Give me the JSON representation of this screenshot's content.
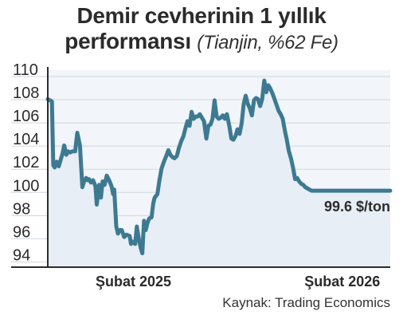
{
  "title_line1": "Demir cevherinin 1 yıllık",
  "title_line2": "performansı",
  "subtitle": "(Tianjin, %62 Fe)",
  "source": "Kaynak: Trading Economics",
  "colors": {
    "line": "#3d7a92",
    "fill": "#e8eef5",
    "plot_bg": "#f2f5f9",
    "grid": "#cfd6de",
    "axis": "#2b2b2b",
    "text": "#2b2b2b"
  },
  "chart_data": {
    "type": "area",
    "title": "Demir cevherinin 1 yıllık performansı",
    "subtitle": "(Tianjin, %62 Fe)",
    "ylim": [
      93,
      110
    ],
    "yticks": [
      94,
      96,
      98,
      100,
      102,
      104,
      106,
      108,
      110
    ],
    "xlim": [
      0,
      100
    ],
    "xticks": [
      {
        "x": 25,
        "label": "Şubat 2025"
      },
      {
        "x": 86,
        "label": "Şubat 2026"
      }
    ],
    "grid": true,
    "last_label": "99.6 $/ton",
    "x": [
      0,
      1.2,
      1.6,
      2,
      2.6,
      3.2,
      3.7,
      4.3,
      4.8,
      5.4,
      5.9,
      6.5,
      7.2,
      8,
      8.6,
      9.4,
      10.1,
      10.6,
      11.2,
      11.6,
      12,
      12.6,
      13.2,
      13.9,
      14.3,
      15,
      15.5,
      16,
      16.6,
      17.2,
      17.9,
      18.6,
      19.1,
      19.4,
      20,
      20.5,
      21,
      21.6,
      22.3,
      23,
      23.9,
      24.3,
      24.7,
      25.5,
      26,
      26.6,
      27.1,
      27.6,
      28.1,
      28.6,
      29.1,
      29.6,
      30.3,
      30.8,
      31.2,
      32,
      32.6,
      33.2,
      33.9,
      34.6,
      35.2,
      35.8,
      36.4,
      37,
      37.7,
      38.3,
      39,
      39.6,
      40.2,
      40.8,
      41.4,
      42,
      42.6,
      43.2,
      43.8,
      44.4,
      45,
      45.6,
      46.3,
      46.9,
      47.5,
      48.1,
      48.7,
      49.3,
      49.9,
      50.5,
      51.1,
      51.7,
      52.3,
      53,
      53.6,
      54.2,
      54.8,
      55.4,
      56,
      56.6,
      57.2,
      57.8,
      58.4,
      59,
      59.6,
      60.2,
      60.8,
      61.4,
      62,
      62.6,
      63.2,
      63.8,
      64.4,
      65,
      65.6,
      66.2,
      66.8,
      67.4,
      68,
      68.6,
      69.2,
      69.8,
      70.4,
      71,
      71.6,
      72.2,
      72.8,
      73.4,
      74,
      74.6,
      75.2,
      75.8,
      76.4,
      77,
      77.6,
      78.2,
      78.8,
      79.4,
      80,
      80.6,
      81.2,
      81.8,
      82.4,
      83,
      83.6,
      84.2,
      84.8,
      85.4,
      86,
      86.6,
      87.2,
      87.8,
      88.4,
      89,
      89.6,
      90.2,
      90.8,
      91.4,
      92,
      92.6,
      93.2,
      93.8,
      94.4,
      95,
      95.6,
      96.2,
      96.8,
      97.4,
      98,
      98.6,
      99.2,
      100
    ],
    "values": [
      107.5,
      107.3,
      101.8,
      101.6,
      102.1,
      101.7,
      102.2,
      102.8,
      103.5,
      102.7,
      103.0,
      102.9,
      103.0,
      103.0,
      104.6,
      103.5,
      99.9,
      100.4,
      100.7,
      100.5,
      100.6,
      100.3,
      100.5,
      100.0,
      98.4,
      100.1,
      99.0,
      100.4,
      100.1,
      100.9,
      100.5,
      100.0,
      99.3,
      99.7,
      96.5,
      95.9,
      96.2,
      96.2,
      95.6,
      95.8,
      95.7,
      95.0,
      95.2,
      95.0,
      96.5,
      95.4,
      94.7,
      94.2,
      97.0,
      96.2,
      96.8,
      97.2,
      97.3,
      98.5,
      99.0,
      99.3,
      100.5,
      101.5,
      102.1,
      102.6,
      103.1,
      102.7,
      102.5,
      102.4,
      102.6,
      103.3,
      103.9,
      104.3,
      105.0,
      105.6,
      105.2,
      106.4,
      105.8,
      106.0,
      106.0,
      106.2,
      105.9,
      105.6,
      104.1,
      105.2,
      105.3,
      105.8,
      107.4,
      106.0,
      105.8,
      105.9,
      106.1,
      105.8,
      106.2,
      105.2,
      104.1,
      104.0,
      104.3,
      104.9,
      104.5,
      105.4,
      107.1,
      107.8,
      107.1,
      106.7,
      106.1,
      107.4,
      107.6,
      107.5,
      106.9,
      107.5,
      109.1,
      108.1,
      108.7,
      108.4,
      108.0,
      107.5,
      107.0,
      106.5,
      106.2,
      105.8,
      104.8,
      104.0,
      103.0,
      102.4,
      101.6,
      100.6,
      100.7,
      100.4,
      100.2,
      100.1,
      99.9,
      99.8,
      99.7,
      99.6,
      99.6,
      99.6,
      99.6,
      99.6,
      99.6,
      99.6,
      99.6,
      99.6,
      99.6,
      99.6,
      99.6,
      99.6,
      99.6,
      99.6,
      99.6,
      99.6,
      99.6,
      99.6,
      99.6,
      99.6,
      99.6,
      99.6,
      99.6,
      99.6,
      99.6,
      99.6,
      99.6,
      99.6,
      99.6,
      99.6,
      99.6,
      99.6,
      99.6,
      99.6,
      99.6,
      99.6,
      99.6,
      99.6
    ]
  }
}
